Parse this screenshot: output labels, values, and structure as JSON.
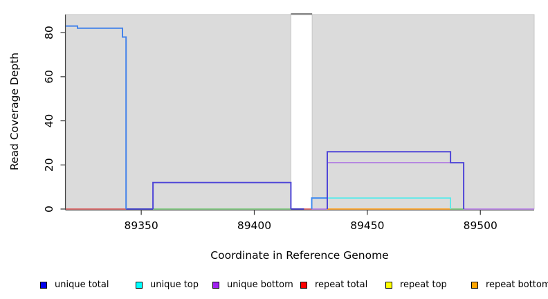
{
  "chart_data": {
    "type": "line",
    "title": "",
    "xlabel": "Coordinate in Reference Genome",
    "ylabel": "Read Coverage Depth",
    "xlim": [
      89316.6,
      89523.8
    ],
    "ylim": [
      0,
      88.2
    ],
    "x_ticks": [
      89350,
      89400,
      89450,
      89500
    ],
    "y_ticks": [
      0,
      20,
      40,
      60,
      80
    ],
    "grid": false,
    "legend_position": "bottom",
    "plot_background": {
      "fill": "#DBDBDB",
      "border": "#C6C6C6",
      "regions": [
        [
          89316.6,
          89416.2
        ],
        [
          89425.6,
          89523.8
        ]
      ],
      "gap_band": [
        89416.2,
        89425.6
      ],
      "gap_cap_color": "#8A8A8A"
    },
    "series": [
      {
        "name": "unique total",
        "color": "#0000EE",
        "steps": [
          [
            89316.6,
            83
          ],
          [
            89321.8,
            82
          ],
          [
            89341.7,
            78
          ],
          [
            89343.3,
            0
          ],
          [
            89355.2,
            12
          ],
          [
            89416.2,
            0
          ],
          [
            89425.4,
            5
          ],
          [
            89432.3,
            26
          ],
          [
            89486.8,
            21
          ],
          [
            89492.6,
            0
          ],
          [
            89523.8,
            0
          ]
        ]
      },
      {
        "name": "unique top",
        "color": "#00FFFF",
        "steps": [
          [
            89316.6,
            0
          ],
          [
            89425.4,
            5
          ],
          [
            89486.8,
            0
          ],
          [
            89523.8,
            0
          ]
        ]
      },
      {
        "name": "unique bottom",
        "color": "#A020F0",
        "steps": [
          [
            89316.6,
            0
          ],
          [
            89355.2,
            12
          ],
          [
            89416.2,
            0
          ],
          [
            89432.3,
            21
          ],
          [
            89492.6,
            0
          ],
          [
            89523.8,
            0
          ]
        ]
      },
      {
        "name": "repeat total",
        "color": "#FF0000",
        "steps": [
          [
            89316.6,
            0
          ],
          [
            89343.3,
            0
          ],
          [
            89416.2,
            0
          ],
          [
            89425.4,
            0
          ]
        ]
      },
      {
        "name": "repeat top",
        "color": "#FFFF00",
        "steps": [
          [
            89316.6,
            0
          ],
          [
            89523.8,
            0
          ]
        ]
      },
      {
        "name": "repeat bottom",
        "color": "#FFA500",
        "steps": [
          [
            89432.3,
            0
          ],
          [
            89486.8,
            0
          ]
        ]
      }
    ],
    "render_segments": [
      {
        "name": "repeat-total-baseline-left",
        "color": "#DC5454",
        "width": 1.6,
        "points": [
          [
            89316.6,
            0
          ],
          [
            89343.3,
            0
          ]
        ]
      },
      {
        "name": "repeat-total-baseline-gap",
        "color": "#DC5454",
        "width": 1.6,
        "points": [
          [
            89416.2,
            0
          ],
          [
            89425.4,
            0
          ]
        ]
      },
      {
        "name": "uncategorized-baseline-mid",
        "color": "#74C874",
        "width": 1.6,
        "points": [
          [
            89355.2,
            0
          ],
          [
            89416.2,
            0
          ]
        ]
      },
      {
        "name": "uncategorized-baseline-right",
        "color": "#74C874",
        "width": 1.6,
        "points": [
          [
            89486.8,
            0
          ],
          [
            89492.6,
            0
          ]
        ]
      },
      {
        "name": "unique-total-baseline-a",
        "color": "#3A3ACA",
        "width": 1.8,
        "points": [
          [
            89343.3,
            0
          ],
          [
            89355.2,
            0
          ]
        ]
      },
      {
        "name": "unique-total-baseline-gap",
        "color": "#3A3ACA",
        "width": 1.8,
        "points": [
          [
            89416.2,
            0
          ],
          [
            89422.0,
            0
          ]
        ]
      },
      {
        "name": "unique-bottom-baseline-a",
        "color": "#B77BEA",
        "width": 1.6,
        "points": [
          [
            89425.4,
            0
          ],
          [
            89432.3,
            0
          ]
        ]
      },
      {
        "name": "repeat-bottom-baseline",
        "color": "#FFA428",
        "width": 1.8,
        "points": [
          [
            89432.3,
            0
          ],
          [
            89486.8,
            0
          ]
        ]
      },
      {
        "name": "unique-bottom-baseline-b",
        "color": "#B77BEA",
        "width": 1.6,
        "points": [
          [
            89492.6,
            0
          ],
          [
            89523.8,
            0
          ]
        ]
      },
      {
        "name": "unique-total-step-high",
        "color": "#4583EA",
        "width": 2,
        "points": [
          [
            89316.6,
            83
          ],
          [
            89321.8,
            83
          ],
          [
            89321.8,
            82
          ],
          [
            89341.7,
            82
          ],
          [
            89341.7,
            78
          ],
          [
            89343.3,
            78
          ],
          [
            89343.3,
            0
          ]
        ]
      },
      {
        "name": "unique-step-12",
        "color": "#4F46D7",
        "width": 2,
        "points": [
          [
            89355.2,
            0
          ],
          [
            89355.2,
            12
          ],
          [
            89416.2,
            12
          ],
          [
            89416.2,
            0
          ]
        ]
      },
      {
        "name": "unique-total-step-5",
        "color": "#418CF0",
        "width": 2,
        "points": [
          [
            89425.4,
            0
          ],
          [
            89425.4,
            5
          ],
          [
            89432.3,
            5
          ]
        ]
      },
      {
        "name": "unique-top-step-5",
        "color": "#58E9E9",
        "width": 1.8,
        "points": [
          [
            89432.3,
            5
          ],
          [
            89486.8,
            5
          ],
          [
            89486.8,
            0
          ]
        ]
      },
      {
        "name": "unique-bottom-step-21",
        "color": "#AB70E2",
        "width": 1.6,
        "points": [
          [
            89432.3,
            21
          ],
          [
            89486.8,
            21
          ]
        ]
      },
      {
        "name": "unique-step-26",
        "color": "#4F46D7",
        "width": 2,
        "points": [
          [
            89432.3,
            0
          ],
          [
            89432.3,
            26
          ],
          [
            89486.8,
            26
          ],
          [
            89486.8,
            21
          ],
          [
            89492.6,
            21
          ],
          [
            89492.6,
            0
          ]
        ]
      }
    ],
    "legend": [
      {
        "label": "unique total",
        "color": "#0000EE"
      },
      {
        "label": "unique top",
        "color": "#00FFFF"
      },
      {
        "label": "unique bottom",
        "color": "#A020F0"
      },
      {
        "label": "repeat total",
        "color": "#FF0000"
      },
      {
        "label": "repeat top",
        "color": "#FFFF00"
      },
      {
        "label": "repeat bottom",
        "color": "#FFA500"
      }
    ]
  }
}
